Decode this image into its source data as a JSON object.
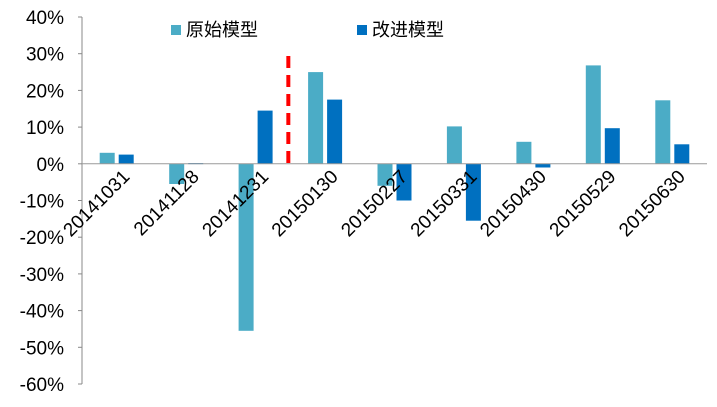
{
  "chart_data": {
    "type": "bar",
    "categories": [
      "20141031",
      "20141128",
      "20141231",
      "20150130",
      "20150227",
      "20150331",
      "20150430",
      "20150529",
      "20150630"
    ],
    "series": [
      {
        "name": "原始模型",
        "values": [
          0.03,
          -0.055,
          -0.455,
          0.25,
          -0.06,
          0.102,
          0.06,
          0.268,
          0.173
        ]
      },
      {
        "name": "改进模型",
        "values": [
          0.025,
          0.002,
          0.145,
          0.175,
          -0.1,
          -0.155,
          -0.01,
          0.097,
          0.053
        ]
      }
    ],
    "ylim": [
      -0.6,
      0.4
    ],
    "yticks": [
      0.4,
      0.3,
      0.2,
      0.1,
      0,
      -0.1,
      -0.2,
      -0.3,
      -0.4,
      -0.5,
      -0.6
    ],
    "ytick_labels": [
      "40%",
      "30%",
      "20%",
      "10%",
      "0%",
      "-10%",
      "-20%",
      "-30%",
      "-40%",
      "-50%",
      "-60%"
    ],
    "colors": {
      "原始模型": "#4BACC6",
      "改进模型": "#0070C0",
      "divider": "#FF0000"
    },
    "divider_after_category": "20141231",
    "legend_position": "top",
    "grid": false,
    "title": "",
    "xlabel": "",
    "ylabel": ""
  }
}
